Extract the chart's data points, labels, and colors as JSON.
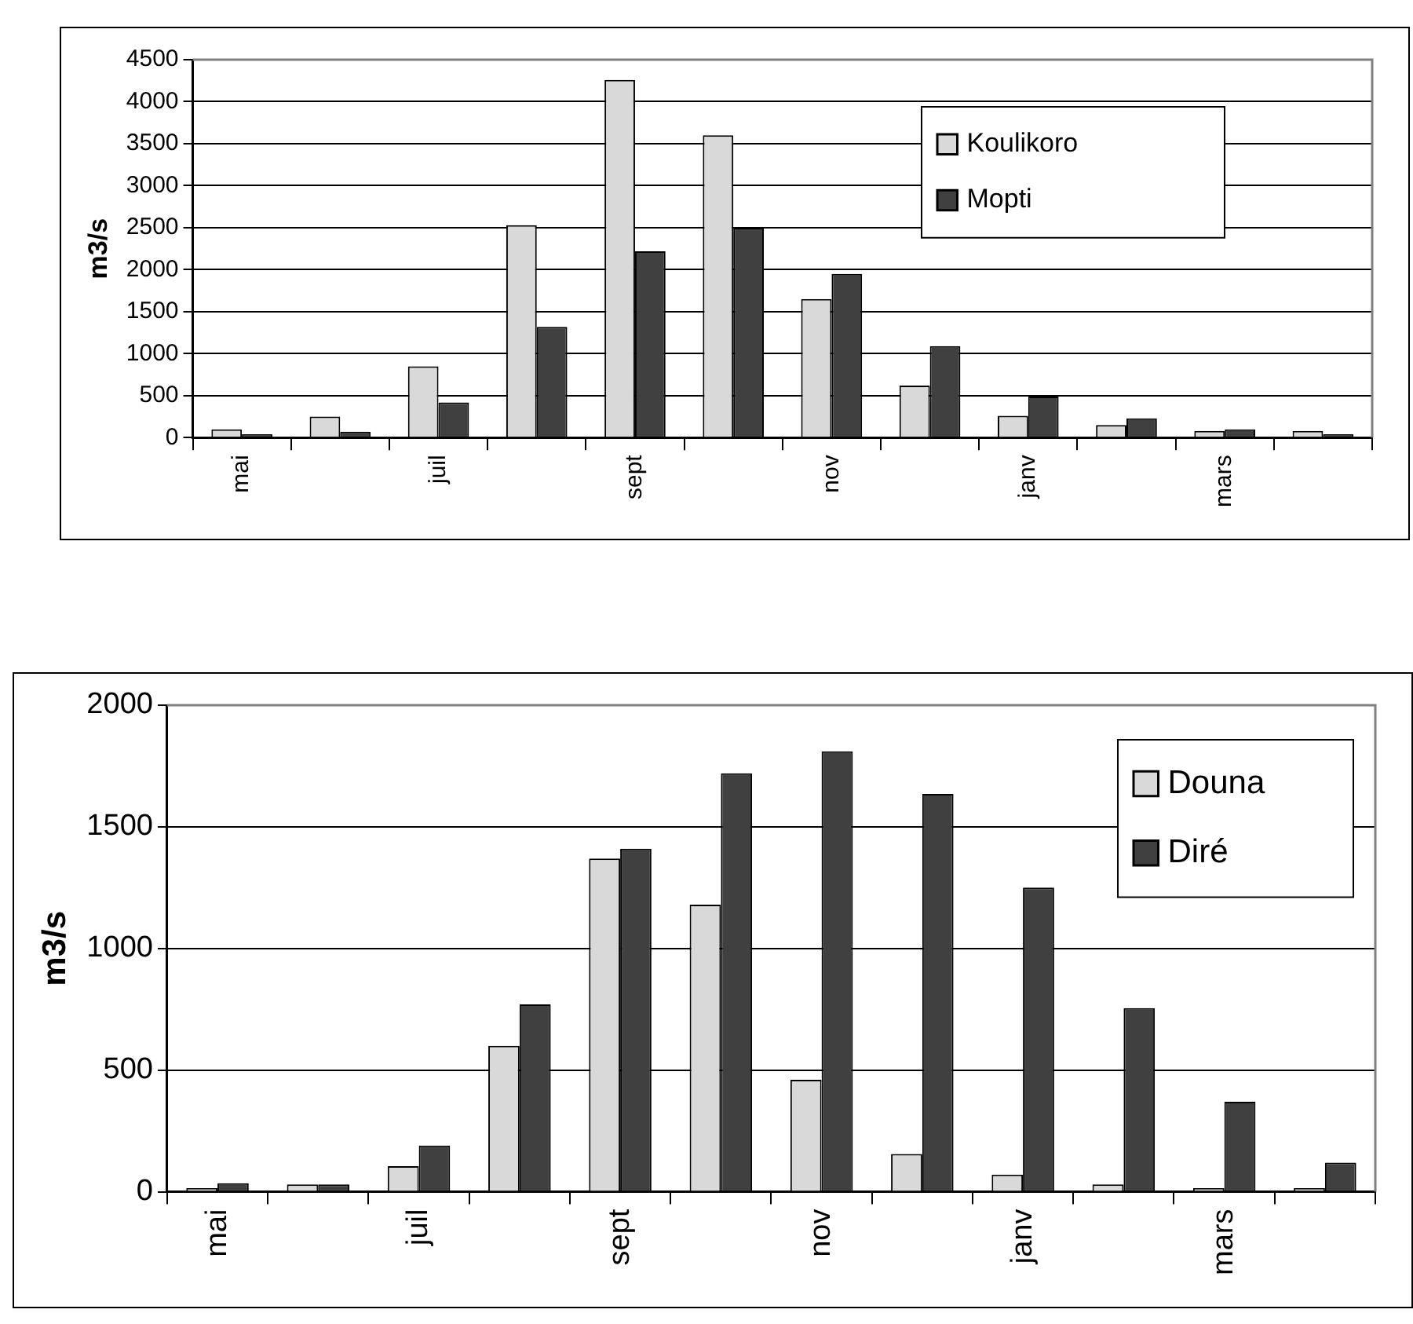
{
  "chart_data": [
    {
      "type": "bar",
      "ylabel": "m3/s",
      "categories": [
        "mai",
        null,
        "juil",
        null,
        "sept",
        null,
        "nov",
        null,
        "janv",
        null,
        "mars",
        null
      ],
      "ylim": [
        0,
        4500
      ],
      "yticks": [
        0,
        500,
        1000,
        1500,
        2000,
        2500,
        3000,
        3500,
        4000,
        4500
      ],
      "grid": "y",
      "legend": "top right",
      "series": [
        {
          "name": "Koulikoro",
          "color": "#d9d9d9",
          "values": [
            100,
            250,
            850,
            2530,
            4260,
            3600,
            1650,
            620,
            260,
            150,
            80,
            80
          ]
        },
        {
          "name": "Mopti",
          "color": "#404040",
          "values": [
            40,
            70,
            420,
            1320,
            2220,
            2500,
            1950,
            1090,
            490,
            230,
            100,
            40
          ]
        }
      ]
    },
    {
      "type": "bar",
      "ylabel": "m3/s",
      "categories": [
        "mai",
        null,
        "juil",
        null,
        "sept",
        null,
        "nov",
        null,
        "janv",
        null,
        "mars",
        null
      ],
      "ylim": [
        0,
        2000
      ],
      "yticks": [
        0,
        500,
        1000,
        1500,
        2000
      ],
      "grid": "y",
      "legend": "top right",
      "series": [
        {
          "name": "Douna",
          "color": "#d9d9d9",
          "values": [
            15,
            30,
            105,
            600,
            1370,
            1180,
            460,
            155,
            70,
            30,
            15,
            15
          ]
        },
        {
          "name": "Diré",
          "color": "#404040",
          "values": [
            35,
            30,
            190,
            770,
            1410,
            1720,
            1810,
            1635,
            1250,
            755,
            370,
            120
          ]
        }
      ]
    }
  ]
}
